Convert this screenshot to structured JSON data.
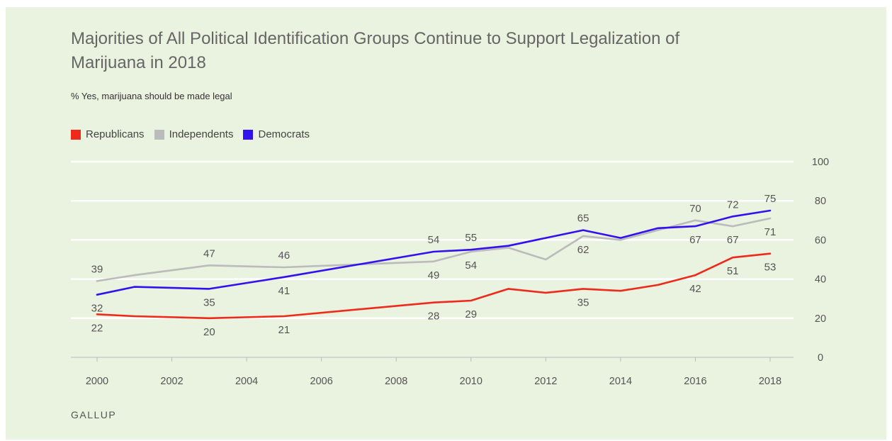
{
  "source": "GALLUP",
  "colors": {
    "background": "#eaf2e0",
    "republicans": "#ee2a1b",
    "independents": "#bbbbbb",
    "democrats": "#3311ee",
    "grid": "#ffffff"
  },
  "chart_data": {
    "type": "line",
    "title": "Majorities of All Political Identification Groups Continue to Support Legalization of Marijuana in 2018",
    "subtitle": "% Yes, marijuana should be made legal",
    "xlabel": "",
    "ylabel": "",
    "xlim": [
      2000,
      2018
    ],
    "ylim": [
      0,
      100
    ],
    "x_ticks": [
      "2000",
      "2002",
      "2004",
      "2006",
      "2008",
      "2010",
      "2012",
      "2014",
      "2016",
      "2018"
    ],
    "y_ticks": [
      "0",
      "20",
      "40",
      "60",
      "80",
      "100"
    ],
    "y_axis_side": "right",
    "grid": true,
    "legend_position": "top-left",
    "series": [
      {
        "name": "Republicans",
        "color": "#ee2a1b",
        "points": [
          [
            2000,
            22
          ],
          [
            2001,
            21
          ],
          [
            2003,
            20
          ],
          [
            2005,
            21
          ],
          [
            2009,
            28
          ],
          [
            2010,
            29
          ],
          [
            2011,
            35
          ],
          [
            2012,
            33
          ],
          [
            2013,
            35
          ],
          [
            2014,
            34
          ],
          [
            2015,
            37
          ],
          [
            2016,
            42
          ],
          [
            2017,
            51
          ],
          [
            2018,
            53
          ]
        ]
      },
      {
        "name": "Independents",
        "color": "#bbbbbb",
        "points": [
          [
            2000,
            39
          ],
          [
            2001,
            42
          ],
          [
            2003,
            47
          ],
          [
            2005,
            46
          ],
          [
            2009,
            49
          ],
          [
            2010,
            54
          ],
          [
            2011,
            56
          ],
          [
            2012,
            50
          ],
          [
            2013,
            62
          ],
          [
            2014,
            60
          ],
          [
            2015,
            65
          ],
          [
            2016,
            70
          ],
          [
            2017,
            67
          ],
          [
            2018,
            71
          ]
        ]
      },
      {
        "name": "Democrats",
        "color": "#3311ee",
        "points": [
          [
            2000,
            32
          ],
          [
            2001,
            36
          ],
          [
            2003,
            35
          ],
          [
            2005,
            41
          ],
          [
            2009,
            54
          ],
          [
            2010,
            55
          ],
          [
            2011,
            57
          ],
          [
            2012,
            61
          ],
          [
            2013,
            65
          ],
          [
            2014,
            61
          ],
          [
            2015,
            66
          ],
          [
            2016,
            67
          ],
          [
            2017,
            72
          ],
          [
            2018,
            75
          ]
        ]
      }
    ],
    "data_labels": [
      {
        "series": "Independents",
        "x": 2000,
        "y": 39,
        "pos": "above",
        "text": "39"
      },
      {
        "series": "Democrats",
        "x": 2000,
        "y": 32,
        "pos": "below",
        "text": "32"
      },
      {
        "series": "Republicans",
        "x": 2000,
        "y": 22,
        "pos": "below",
        "text": "22"
      },
      {
        "series": "Independents",
        "x": 2003,
        "y": 47,
        "pos": "above",
        "text": "47"
      },
      {
        "series": "Democrats",
        "x": 2003,
        "y": 35,
        "pos": "below",
        "text": "35"
      },
      {
        "series": "Republicans",
        "x": 2003,
        "y": 20,
        "pos": "below",
        "text": "20"
      },
      {
        "series": "Independents",
        "x": 2005,
        "y": 46,
        "pos": "above",
        "text": "46"
      },
      {
        "series": "Democrats",
        "x": 2005,
        "y": 41,
        "pos": "below",
        "text": "41"
      },
      {
        "series": "Republicans",
        "x": 2005,
        "y": 21,
        "pos": "below",
        "text": "21"
      },
      {
        "series": "Democrats",
        "x": 2009,
        "y": 54,
        "pos": "above",
        "text": "54"
      },
      {
        "series": "Independents",
        "x": 2009,
        "y": 49,
        "pos": "below",
        "text": "49"
      },
      {
        "series": "Republicans",
        "x": 2009,
        "y": 28,
        "pos": "below",
        "text": "28"
      },
      {
        "series": "Democrats",
        "x": 2010,
        "y": 55,
        "pos": "above",
        "text": "55"
      },
      {
        "series": "Independents",
        "x": 2010,
        "y": 54,
        "pos": "below",
        "text": "54"
      },
      {
        "series": "Republicans",
        "x": 2010,
        "y": 29,
        "pos": "below",
        "text": "29"
      },
      {
        "series": "Democrats",
        "x": 2013,
        "y": 65,
        "pos": "above",
        "text": "65"
      },
      {
        "series": "Independents",
        "x": 2013,
        "y": 62,
        "pos": "below",
        "text": "62"
      },
      {
        "series": "Republicans",
        "x": 2013,
        "y": 35,
        "pos": "below",
        "text": "35"
      },
      {
        "series": "Independents",
        "x": 2016,
        "y": 70,
        "pos": "above",
        "text": "70"
      },
      {
        "series": "Democrats",
        "x": 2016,
        "y": 67,
        "pos": "below",
        "text": "67"
      },
      {
        "series": "Republicans",
        "x": 2016,
        "y": 42,
        "pos": "below",
        "text": "42"
      },
      {
        "series": "Democrats",
        "x": 2017,
        "y": 72,
        "pos": "above",
        "text": "72"
      },
      {
        "series": "Independents",
        "x": 2017,
        "y": 67,
        "pos": "below",
        "text": "67"
      },
      {
        "series": "Republicans",
        "x": 2017,
        "y": 51,
        "pos": "below",
        "text": "51"
      },
      {
        "series": "Democrats",
        "x": 2018,
        "y": 75,
        "pos": "above",
        "text": "75"
      },
      {
        "series": "Independents",
        "x": 2018,
        "y": 71,
        "pos": "below",
        "text": "71"
      },
      {
        "series": "Republicans",
        "x": 2018,
        "y": 53,
        "pos": "below",
        "text": "53"
      }
    ]
  }
}
